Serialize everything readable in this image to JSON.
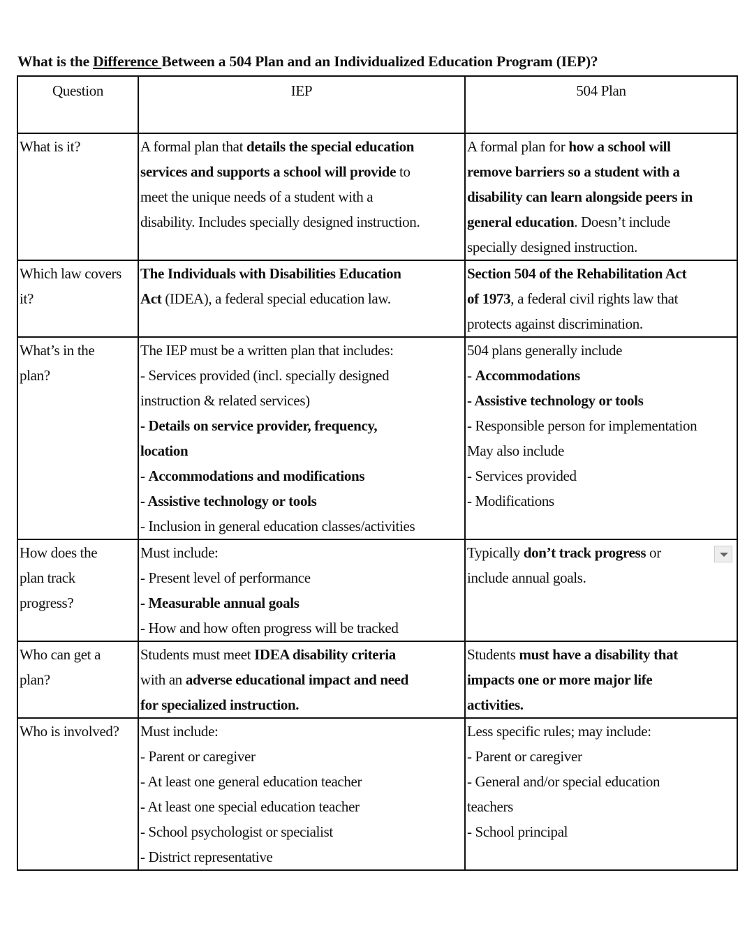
{
  "title": {
    "before": "What is the ",
    "underlined": "Difference ",
    "after": "Between a 504 Plan and an Individualized Education Program (IEP)?"
  },
  "headers": [
    "Question",
    "IEP",
    "504 Plan"
  ],
  "row_heights_note": "",
  "rows": [
    {
      "question": [
        [
          [
            "What is it?",
            0
          ]
        ]
      ],
      "iep": [
        [
          [
            "A formal plan that ",
            0
          ],
          [
            "details the special education",
            1
          ]
        ],
        [
          [
            "services and supports a school will provide",
            1
          ],
          [
            " to",
            0
          ]
        ],
        [
          [
            "meet the unique needs of a student with a",
            0
          ]
        ],
        [
          [
            "disability. Includes specially designed instruction.",
            0
          ]
        ]
      ],
      "plan504": [
        [
          [
            "A formal plan for ",
            0
          ],
          [
            "how a school will",
            1
          ]
        ],
        [
          [
            "remove barriers so a student with a",
            1
          ]
        ],
        [
          [
            "disability can learn alongside peers in",
            1
          ]
        ],
        [
          [
            "general education",
            1
          ],
          [
            ". Doesn’t include",
            0
          ]
        ],
        [
          [
            "specially designed instruction.",
            0
          ]
        ]
      ]
    },
    {
      "question": [
        [
          [
            "Which law covers",
            0
          ]
        ],
        [
          [
            "it?",
            0
          ]
        ]
      ],
      "iep": [
        [
          [
            "The Individuals with Disabilities Education",
            1
          ]
        ],
        [
          [
            "Act",
            1
          ],
          [
            " (IDEA), a federal special education law.",
            0
          ]
        ]
      ],
      "plan504": [
        [
          [
            "Section 504 of the Rehabilitation Act",
            1
          ]
        ],
        [
          [
            "of 1973",
            1
          ],
          [
            ", a federal civil rights law that",
            0
          ]
        ],
        [
          [
            "protects against discrimination.",
            0
          ]
        ]
      ]
    },
    {
      "question": [
        [
          [
            "What’s in the",
            0
          ]
        ],
        [
          [
            "plan?",
            0
          ]
        ]
      ],
      "iep": [
        [
          [
            "The IEP must be a written plan that includes:",
            0
          ]
        ],
        [
          [
            "- Services provided (incl. specially designed",
            0
          ]
        ],
        [
          [
            "instruction & related services)",
            0
          ]
        ],
        [
          [
            "- Details on service provider, frequency,",
            1
          ]
        ],
        [
          [
            "location",
            1
          ]
        ],
        [
          [
            "- ",
            0
          ],
          [
            "Accommodations and modifications",
            1
          ]
        ],
        [
          [
            "- Assistive technology or tools",
            1
          ]
        ],
        [
          [
            "- Inclusion in general education classes/activities",
            0
          ]
        ]
      ],
      "plan504": [
        [
          [
            "504 plans generally include",
            0
          ]
        ],
        [
          [
            "- ",
            0
          ],
          [
            "Accommodations",
            1
          ]
        ],
        [
          [
            "- Assistive technology or tools",
            1
          ]
        ],
        [
          [
            "- Responsible person for implementation",
            0
          ]
        ],
        [
          [
            "May also include",
            0
          ]
        ],
        [
          [
            "- Services provided",
            0
          ]
        ],
        [
          [
            "- Modifications",
            0
          ]
        ]
      ]
    },
    {
      "question": [
        [
          [
            "How does the",
            0
          ]
        ],
        [
          [
            "plan track",
            0
          ]
        ],
        [
          [
            "progress?",
            0
          ]
        ]
      ],
      "iep": [
        [
          [
            "Must include:",
            0
          ]
        ],
        [
          [
            "- Present level of performance",
            0
          ]
        ],
        [
          [
            "- Measurable annual goals",
            1
          ]
        ],
        [
          [
            "- How and how often progress will be tracked",
            0
          ]
        ]
      ],
      "plan504": [
        [
          [
            "Typically ",
            0
          ],
          [
            "don’t track progress",
            1
          ],
          [
            " or",
            0
          ]
        ],
        [
          [
            "include annual goals.",
            0
          ]
        ]
      ],
      "plan504_dropdown_icon": "dropdown-arrow-icon"
    },
    {
      "question": [
        [
          [
            "Who can get a",
            0
          ]
        ],
        [
          [
            "plan?",
            0
          ]
        ]
      ],
      "iep": [
        [
          [
            "Students must meet ",
            0
          ],
          [
            "IDEA disability criteria",
            1
          ]
        ],
        [
          [
            "with an ",
            0
          ],
          [
            "adverse educational impact and need",
            1
          ]
        ],
        [
          [
            "for specialized instruction.",
            1
          ]
        ]
      ],
      "plan504": [
        [
          [
            "Students ",
            0
          ],
          [
            "must have a disability that",
            1
          ]
        ],
        [
          [
            "impacts one or more major life",
            1
          ]
        ],
        [
          [
            "activities.",
            1
          ]
        ]
      ]
    },
    {
      "question": [
        [
          [
            "Who is involved?",
            0
          ]
        ]
      ],
      "iep": [
        [
          [
            "Must include:",
            0
          ]
        ],
        [
          [
            "- Parent or caregiver",
            0
          ]
        ],
        [
          [
            "- At least one general education teacher",
            0
          ]
        ],
        [
          [
            "- At least one special education teacher",
            0
          ]
        ],
        [
          [
            "- School psychologist or specialist",
            0
          ]
        ],
        [
          [
            "- District representative",
            0
          ]
        ]
      ],
      "plan504": [
        [
          [
            "Less specific rules; may include:",
            0
          ]
        ],
        [
          [
            "- Parent or caregiver",
            0
          ]
        ],
        [
          [
            "- General and/or special education",
            0
          ]
        ],
        [
          [
            "teachers",
            0
          ]
        ],
        [
          [
            "- School principal",
            0
          ]
        ]
      ]
    }
  ]
}
